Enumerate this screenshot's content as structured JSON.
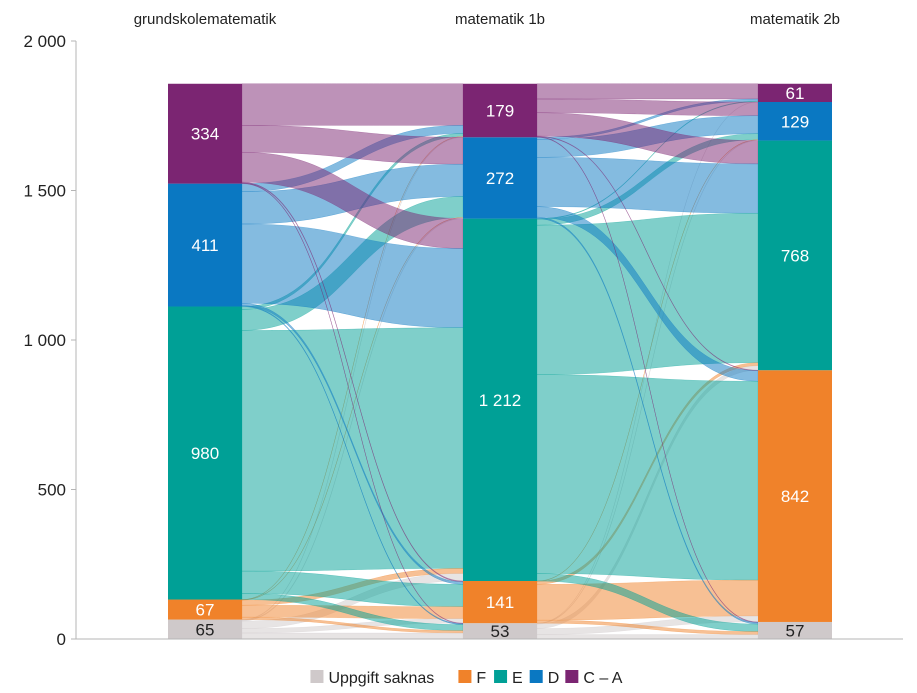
{
  "chart_data": {
    "type": "sankey",
    "stage_labels": [
      "grundskolematematik",
      "matematik 1b",
      "matematik 2b"
    ],
    "categories": [
      "Uppgift saknas",
      "F",
      "E",
      "D",
      "C – A"
    ],
    "colors": {
      "Uppgift saknas": "#cfc9ca",
      "F": "#f0822a",
      "E": "#00a096",
      "D": "#0a78c2",
      "C – A": "#7b2572"
    },
    "y_axis": {
      "ylim": [
        0,
        2000
      ],
      "ticks": [
        0,
        500,
        1000,
        1500,
        2000
      ],
      "tick_labels": [
        "0",
        "500",
        "1 000",
        "1 500",
        "2 000"
      ]
    },
    "stages": [
      {
        "name": "grundskolematematik",
        "values": [
          {
            "category": "Uppgift saknas",
            "value": 65,
            "label": "65"
          },
          {
            "category": "F",
            "value": 67,
            "label": "67"
          },
          {
            "category": "E",
            "value": 980,
            "label": "980"
          },
          {
            "category": "D",
            "value": 411,
            "label": "411"
          },
          {
            "category": "C – A",
            "value": 334,
            "label": "334"
          }
        ]
      },
      {
        "name": "matematik 1b",
        "values": [
          {
            "category": "Uppgift saknas",
            "value": 53,
            "label": "53"
          },
          {
            "category": "F",
            "value": 141,
            "label": "141"
          },
          {
            "category": "E",
            "value": 1212,
            "label": "1 212"
          },
          {
            "category": "D",
            "value": 272,
            "label": "272"
          },
          {
            "category": "C – A",
            "value": 179,
            "label": "179"
          }
        ]
      },
      {
        "name": "matematik 2b",
        "values": [
          {
            "category": "Uppgift saknas",
            "value": 57,
            "label": "57"
          },
          {
            "category": "F",
            "value": 842,
            "label": "842"
          },
          {
            "category": "E",
            "value": 768,
            "label": "768"
          },
          {
            "category": "D",
            "value": 129,
            "label": "129"
          },
          {
            "category": "C – A",
            "value": 61,
            "label": "61"
          }
        ]
      }
    ],
    "flows": [
      [
        {
          "from": "Uppgift saknas",
          "to": "Uppgift saknas",
          "value": 20
        },
        {
          "from": "Uppgift saknas",
          "to": "F",
          "value": 15
        },
        {
          "from": "Uppgift saknas",
          "to": "E",
          "value": 25
        },
        {
          "from": "Uppgift saknas",
          "to": "D",
          "value": 3
        },
        {
          "from": "Uppgift saknas",
          "to": "C – A",
          "value": 2
        },
        {
          "from": "F",
          "to": "Uppgift saknas",
          "value": 8
        },
        {
          "from": "F",
          "to": "F",
          "value": 40
        },
        {
          "from": "F",
          "to": "E",
          "value": 17
        },
        {
          "from": "F",
          "to": "D",
          "value": 1
        },
        {
          "from": "F",
          "to": "C – A",
          "value": 1
        },
        {
          "from": "E",
          "to": "Uppgift saknas",
          "value": 20
        },
        {
          "from": "E",
          "to": "F",
          "value": 75
        },
        {
          "from": "E",
          "to": "E",
          "value": 805
        },
        {
          "from": "E",
          "to": "D",
          "value": 70
        },
        {
          "from": "E",
          "to": "C – A",
          "value": 10
        },
        {
          "from": "D",
          "to": "Uppgift saknas",
          "value": 3
        },
        {
          "from": "D",
          "to": "F",
          "value": 8
        },
        {
          "from": "D",
          "to": "E",
          "value": 265
        },
        {
          "from": "D",
          "to": "D",
          "value": 108
        },
        {
          "from": "D",
          "to": "C – A",
          "value": 27
        },
        {
          "from": "C – A",
          "to": "Uppgift saknas",
          "value": 2
        },
        {
          "from": "C – A",
          "to": "F",
          "value": 3
        },
        {
          "from": "C – A",
          "to": "E",
          "value": 100
        },
        {
          "from": "C – A",
          "to": "D",
          "value": 90
        },
        {
          "from": "C – A",
          "to": "C – A",
          "value": 139
        }
      ],
      [
        {
          "from": "Uppgift saknas",
          "to": "Uppgift saknas",
          "value": 15
        },
        {
          "from": "Uppgift saknas",
          "to": "F",
          "value": 20
        },
        {
          "from": "Uppgift saknas",
          "to": "E",
          "value": 15
        },
        {
          "from": "Uppgift saknas",
          "to": "D",
          "value": 2
        },
        {
          "from": "Uppgift saknas",
          "to": "C – A",
          "value": 1
        },
        {
          "from": "F",
          "to": "Uppgift saknas",
          "value": 10
        },
        {
          "from": "F",
          "to": "F",
          "value": 120
        },
        {
          "from": "F",
          "to": "E",
          "value": 10
        },
        {
          "from": "F",
          "to": "D",
          "value": 1
        },
        {
          "from": "E",
          "to": "Uppgift saknas",
          "value": 25
        },
        {
          "from": "E",
          "to": "F",
          "value": 665
        },
        {
          "from": "E",
          "to": "E",
          "value": 500
        },
        {
          "from": "E",
          "to": "D",
          "value": 20
        },
        {
          "from": "E",
          "to": "C – A",
          "value": 2
        },
        {
          "from": "D",
          "to": "Uppgift saknas",
          "value": 5
        },
        {
          "from": "D",
          "to": "F",
          "value": 35
        },
        {
          "from": "D",
          "to": "E",
          "value": 165
        },
        {
          "from": "D",
          "to": "D",
          "value": 60
        },
        {
          "from": "D",
          "to": "C – A",
          "value": 7
        },
        {
          "from": "C – A",
          "to": "Uppgift saknas",
          "value": 2
        },
        {
          "from": "C – A",
          "to": "F",
          "value": 2
        },
        {
          "from": "C – A",
          "to": "E",
          "value": 78
        },
        {
          "from": "C – A",
          "to": "D",
          "value": 46
        },
        {
          "from": "C – A",
          "to": "C – A",
          "value": 51
        }
      ]
    ],
    "legend": {
      "placement": "bottom-center",
      "items": [
        "Uppgift saknas",
        "F",
        "E",
        "D",
        "C – A"
      ]
    }
  }
}
